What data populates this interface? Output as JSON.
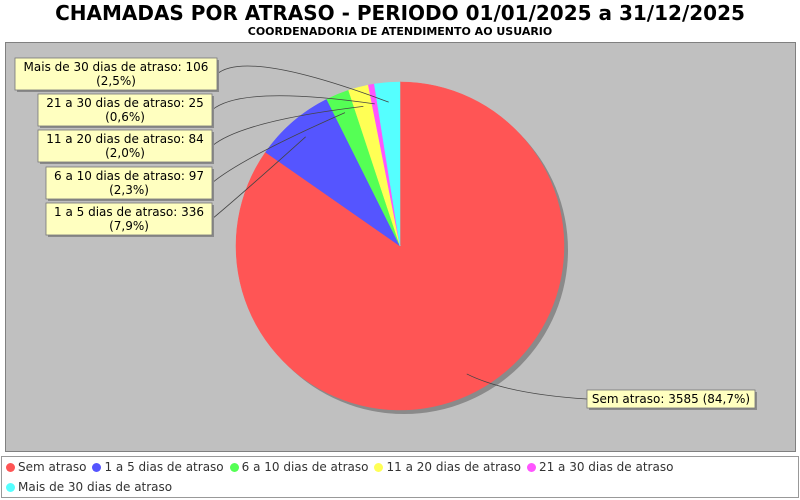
{
  "chart_data": {
    "type": "pie",
    "title": "CHAMADAS POR ATRASO - PERIODO 01/01/2025 a 31/12/2025",
    "subtitle": "COORDENADORIA DE ATENDIMENTO AO USUARIO",
    "legend_position": "bottom",
    "slices": [
      {
        "name": "Sem atraso",
        "value": 3585,
        "percent": "84,7%",
        "label": "Sem atraso: 3585 (84,7%)",
        "color": "#ff5555"
      },
      {
        "name": "1 a 5 dias de atraso",
        "value": 336,
        "percent": "7,9%",
        "label_line1": "1 a 5 dias de atraso: 336",
        "label_line2": "(7,9%)",
        "color": "#5555ff"
      },
      {
        "name": "6 a 10 dias de atraso",
        "value": 97,
        "percent": "2,3%",
        "label_line1": "6 a 10 dias de atraso: 97",
        "label_line2": "(2,3%)",
        "color": "#55ff55"
      },
      {
        "name": "11 a 20 dias de atraso",
        "value": 84,
        "percent": "2,0%",
        "label_line1": "11 a 20 dias de atraso: 84",
        "label_line2": "(2,0%)",
        "color": "#ffff55"
      },
      {
        "name": "21 a 30 dias de atraso",
        "value": 25,
        "percent": "0,6%",
        "label_line1": "21 a 30 dias de atraso: 25",
        "label_line2": "(0,6%)",
        "color": "#ff55ff"
      },
      {
        "name": "Mais de 30 dias de atraso",
        "value": 106,
        "percent": "2,5%",
        "label_line1": "Mais de 30 dias de atraso: 106",
        "label_line2": "(2,5%)",
        "color": "#55ffff"
      }
    ]
  }
}
